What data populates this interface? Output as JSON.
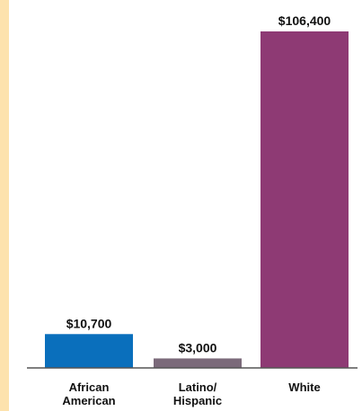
{
  "colors": {
    "side_strip": "#fde2ad",
    "axis": "#555555"
  },
  "chart_data": {
    "type": "bar",
    "title": "",
    "xlabel": "",
    "ylabel": "",
    "ylim": [
      0,
      106400
    ],
    "grid": false,
    "categories": [
      {
        "lines": [
          "African",
          "American"
        ]
      },
      {
        "lines": [
          "Latino/",
          "Hispanic"
        ]
      },
      {
        "lines": [
          "White"
        ]
      }
    ],
    "values": [
      10700,
      3000,
      106400
    ],
    "value_labels": [
      "$10,700",
      "$3,000",
      "$106,400"
    ],
    "bar_colors": [
      "#0a6fbc",
      "#7b6a7a",
      "#8e3a74"
    ]
  }
}
